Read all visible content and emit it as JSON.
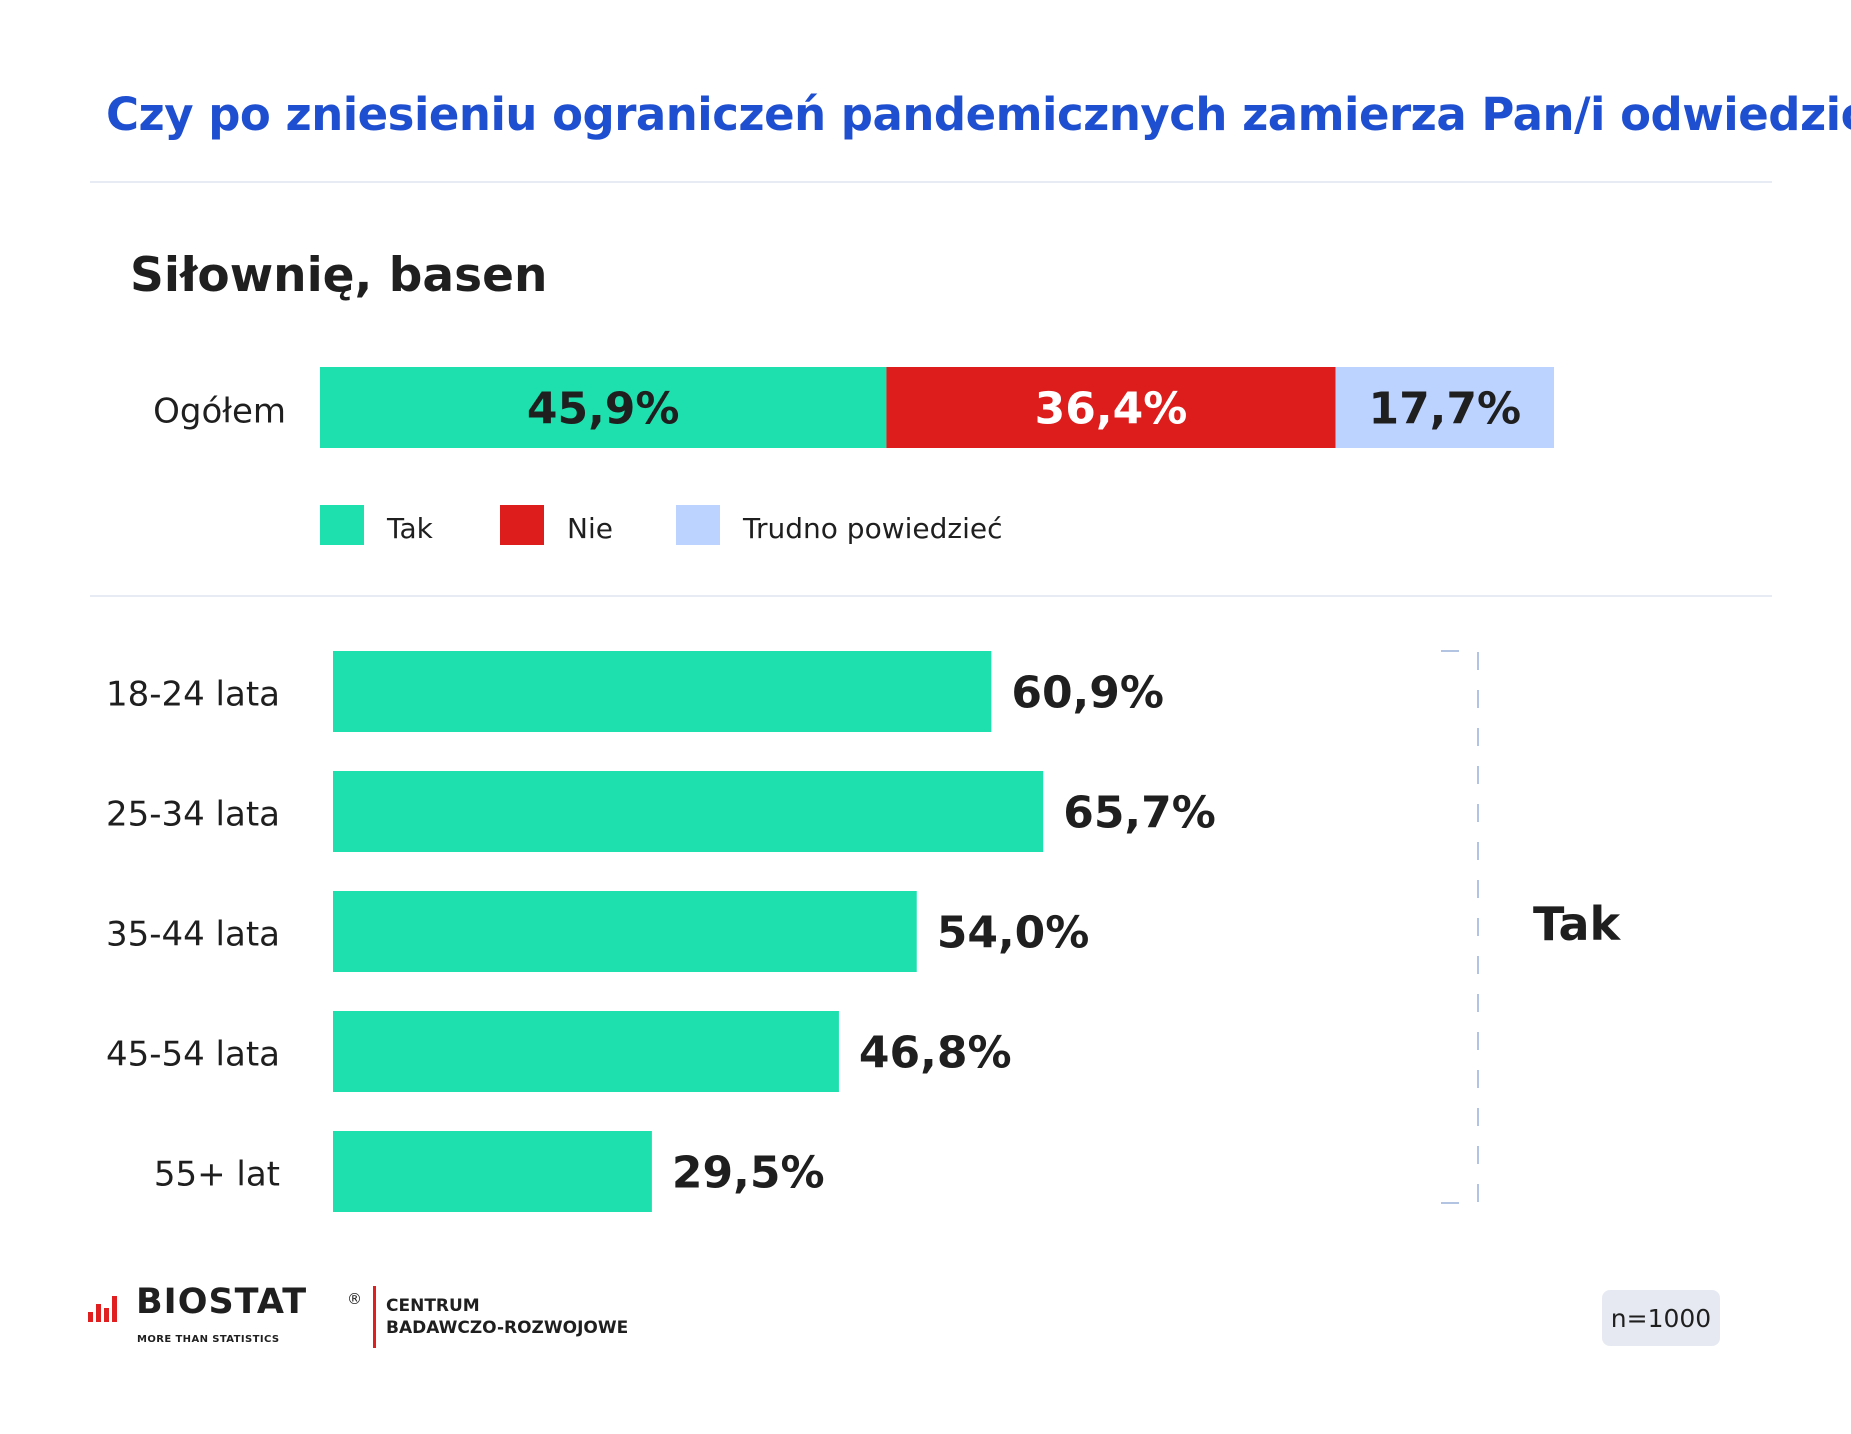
{
  "title": "Czy po zniesieniu ograniczeń pandemicznych zamierza Pan/i odwiedzić:",
  "subtitle": "Siłownię, basen",
  "colors": {
    "title": "#1f4fd1",
    "tak": "#1de0ae",
    "nie": "#dd1c1c",
    "trudno": "#bcd2ff",
    "text": "#1f1f1f",
    "bracket": "#b3c4e3",
    "divider": "#e7ebf3"
  },
  "chart_data": [
    {
      "type": "bar",
      "orientation": "horizontal",
      "stacked": true,
      "categories": [
        "Ogółem"
      ],
      "series": [
        {
          "name": "Tak",
          "values": [
            45.9
          ],
          "label": "45,9%"
        },
        {
          "name": "Nie",
          "values": [
            36.4
          ],
          "label": "36,4%"
        },
        {
          "name": "Trudno powiedzieć",
          "values": [
            17.7
          ],
          "label": "17,7%"
        }
      ],
      "legend": {
        "position": "bottom",
        "items": [
          "Tak",
          "Nie",
          "Trudno powiedzieć"
        ]
      },
      "unit": "%"
    },
    {
      "type": "bar",
      "orientation": "horizontal",
      "categories": [
        "18-24 lata",
        "25-34 lata",
        "35-44 lata",
        "45-54 lata",
        "55+ lat"
      ],
      "values": [
        60.9,
        65.7,
        54.0,
        46.8,
        29.5
      ],
      "labels": [
        "60,9%",
        "65,7%",
        "54,0%",
        "46,8%",
        "29,5%"
      ],
      "bracket_label": "Tak",
      "unit": "%"
    }
  ],
  "footer": {
    "logo_text": "BIOSTAT",
    "logo_registered": "®",
    "logo_tagline": "MORE THAN STATISTICS",
    "org_line1": "CENTRUM",
    "org_line2": "BADAWCZO-ROZWOJOWE",
    "sample": "n=1000"
  }
}
